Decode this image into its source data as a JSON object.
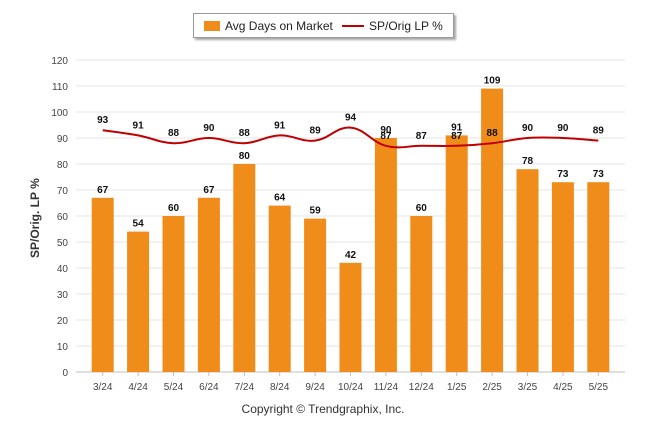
{
  "legend": {
    "bar_label": "Avg Days on Market",
    "line_label": "SP/Orig LP %"
  },
  "copyright": "Copyright © Trendgraphix, Inc.",
  "colors": {
    "bar": "#f08c1a",
    "line": "#c00000",
    "grid": "#e6e6e6"
  },
  "chart_data": {
    "type": "bar",
    "categories": [
      "3/24",
      "4/24",
      "5/24",
      "6/24",
      "7/24",
      "8/24",
      "9/24",
      "10/24",
      "11/24",
      "12/24",
      "1/25",
      "2/25",
      "3/25",
      "4/25",
      "5/25"
    ],
    "ylabel": "SP/Orig. LP %",
    "ylim": [
      0,
      120
    ],
    "yticks": [
      0,
      10,
      20,
      30,
      40,
      50,
      60,
      70,
      80,
      90,
      100,
      110,
      120
    ],
    "grid": true,
    "legend_position": "top",
    "series": [
      {
        "name": "Avg Days on Market",
        "type": "bar",
        "values": [
          67,
          54,
          60,
          67,
          80,
          64,
          59,
          42,
          90,
          60,
          91,
          109,
          78,
          73,
          73
        ]
      },
      {
        "name": "SP/Orig LP %",
        "type": "line",
        "values": [
          93,
          91,
          88,
          90,
          88,
          91,
          89,
          94,
          87,
          87,
          87,
          88,
          90,
          90,
          89
        ]
      }
    ]
  }
}
